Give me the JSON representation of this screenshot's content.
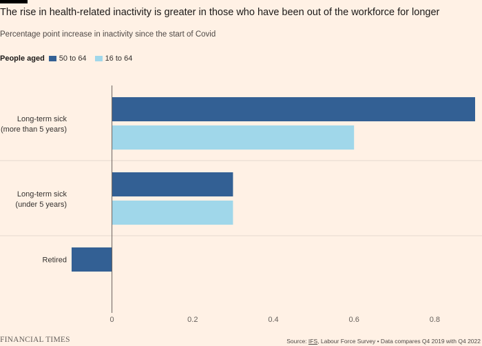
{
  "header": {
    "title": "The rise in health-related inactivity is greater in those who have been out of the workforce for longer",
    "subtitle": "Percentage point increase in inactivity since the start of Covid"
  },
  "legend": {
    "title": "People aged",
    "items": [
      {
        "label": "50 to 64",
        "color": "#336094"
      },
      {
        "label": "16 to 64",
        "color": "#a0d7ea"
      }
    ]
  },
  "chart_data": {
    "type": "bar",
    "orientation": "horizontal",
    "categories": [
      "Long-term sick\n(more than 5 years)",
      "Long-term sick\n(under 5 years)",
      "Retired"
    ],
    "series": [
      {
        "name": "50 to 64",
        "values": [
          0.9,
          0.3,
          -0.1
        ],
        "color": "#336094"
      },
      {
        "name": "16 to 64",
        "values": [
          0.6,
          0.3,
          0
        ],
        "color": "#a0d7ea"
      }
    ],
    "xlim": [
      -0.1,
      0.9
    ],
    "xticks": [
      0,
      0.2,
      0.4,
      0.6,
      0.8
    ],
    "xtick_labels": [
      "0",
      "0.2",
      "0.4",
      "0.6",
      "0.8"
    ],
    "legend_position": "top-left"
  },
  "footer": {
    "brand": "FINANCIAL TIMES",
    "source_prefix": "Source: ",
    "source_link": "IFS",
    "source_rest": ", Labour Force Survey • Data compares Q4 2019 with Q4 2022"
  }
}
